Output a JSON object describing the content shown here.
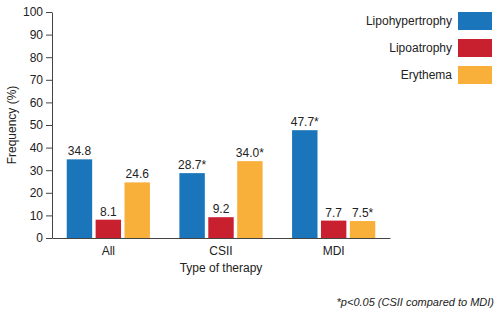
{
  "chart_data": {
    "type": "bar",
    "x_label": "Type of therapy",
    "y_label": "Frequency (%)",
    "categories": [
      "All",
      "CSII",
      "MDI"
    ],
    "series": [
      {
        "name": "Lipohypertrophy",
        "color": "#1a75bb",
        "values": [
          34.8,
          28.7,
          47.7
        ],
        "value_labels": [
          "34.8",
          "28.7*",
          "47.7*"
        ]
      },
      {
        "name": "Lipoatrophy",
        "color": "#c8202f",
        "values": [
          8.1,
          9.2,
          7.7
        ],
        "value_labels": [
          "8.1",
          "9.2",
          "7.7"
        ]
      },
      {
        "name": "Erythema",
        "color": "#f9b03a",
        "values": [
          24.6,
          34.0,
          7.5
        ],
        "value_labels": [
          "24.6",
          "34.0*",
          "7.5*"
        ]
      }
    ],
    "ylim": [
      0,
      100
    ],
    "yticks": [
      0,
      10,
      20,
      30,
      40,
      50,
      60,
      70,
      80,
      90,
      100
    ],
    "grid": false,
    "legend": "top-right",
    "data_labels": true,
    "annotations": [
      "*p<0.05 (CSII compared to MDI)"
    ]
  }
}
